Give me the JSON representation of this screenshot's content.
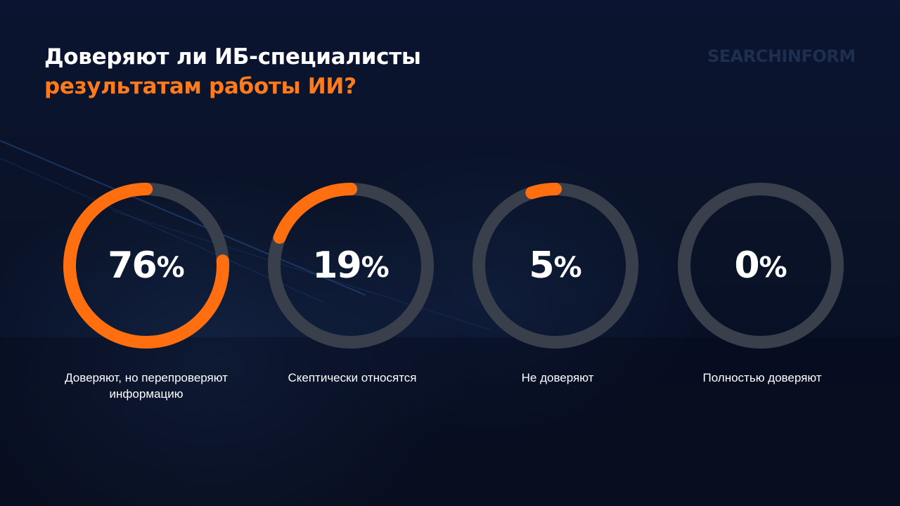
{
  "title": {
    "line1": "Доверяют ли ИБ-специалисты",
    "line2": "результатам работы ИИ?"
  },
  "logo": "SEARCHINFORM",
  "colors": {
    "accent": "#ff6f0f",
    "track": "#3a3f4c",
    "text": "#ffffff",
    "title_accent": "#ff7a1a"
  },
  "chart_data": {
    "type": "pie",
    "style": "ring-gauges",
    "values": [
      76,
      19,
      5,
      0
    ],
    "labels": [
      "Доверяют, но перепроверяют информацию",
      "Скептически относятся",
      "Не доверяют",
      "Полностью доверяют"
    ],
    "unit": "%"
  },
  "gauges": [
    {
      "value": "76",
      "unit": "%",
      "label": "Доверяют, но перепроверяют информацию"
    },
    {
      "value": "19",
      "unit": "%",
      "label": "Скептически относятся"
    },
    {
      "value": "5",
      "unit": "%",
      "label": "Не доверяют"
    },
    {
      "value": "0",
      "unit": "%",
      "label": "Полностью доверяют"
    }
  ]
}
